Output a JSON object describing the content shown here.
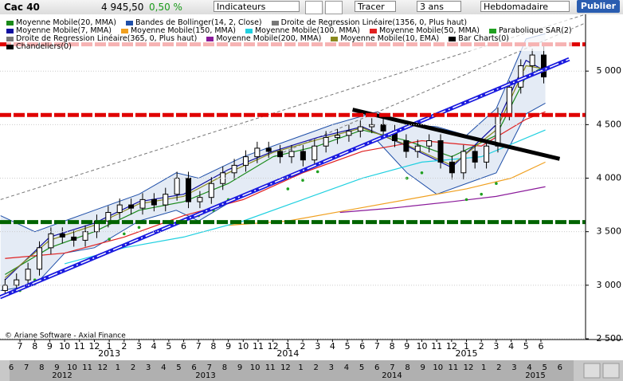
{
  "toolbar": {
    "symbol": "Cac 40",
    "price": "4 945,50",
    "change": "0,50 %",
    "indicators": "Indicateurs",
    "draw": "Tracer",
    "period": "3 ans",
    "interval": "Hebdomadaire",
    "publish": "Publier"
  },
  "copyright": "© Ariane Software - Axial Finance",
  "navigator": {
    "months": [
      "6",
      "7",
      "8",
      "9",
      "10",
      "11",
      "12",
      "1",
      "2",
      "3",
      "4",
      "5",
      "6",
      "7",
      "8",
      "9",
      "10",
      "11",
      "12",
      "1",
      "2",
      "3",
      "4",
      "5",
      "6",
      "7",
      "8",
      "9",
      "10",
      "11",
      "12",
      "1",
      "2",
      "3",
      "4",
      "5",
      "6"
    ],
    "years": [
      "2012",
      "2013",
      "2014",
      "2015"
    ]
  },
  "chart_data": {
    "type": "candlestick",
    "xlim": [
      -1.34,
      38
    ],
    "ylim": [
      2500,
      5530
    ],
    "yticks": [
      {
        "value": 2500,
        "label": "2 500"
      },
      {
        "value": 3000,
        "label": "3 000"
      },
      {
        "value": 3500,
        "label": "3 500"
      },
      {
        "value": 4000,
        "label": "4 000"
      },
      {
        "value": 4500,
        "label": "4 500"
      },
      {
        "value": 5000,
        "label": "5 000"
      }
    ],
    "grid": true,
    "xticks": [
      {
        "value": 0,
        "label": "7"
      },
      {
        "value": 1,
        "label": "8"
      },
      {
        "value": 2,
        "label": "9"
      },
      {
        "value": 3,
        "label": "10"
      },
      {
        "value": 4,
        "label": "11"
      },
      {
        "value": 5,
        "label": "12"
      },
      {
        "value": 6,
        "label": "1"
      },
      {
        "value": 7,
        "label": "2"
      },
      {
        "value": 8,
        "label": "3"
      },
      {
        "value": 9,
        "label": "4"
      },
      {
        "value": 10,
        "label": "5"
      },
      {
        "value": 11,
        "label": "6"
      },
      {
        "value": 12,
        "label": "7"
      },
      {
        "value": 13,
        "label": "8"
      },
      {
        "value": 14,
        "label": "9"
      },
      {
        "value": 15,
        "label": "10"
      },
      {
        "value": 16,
        "label": "11"
      },
      {
        "value": 17,
        "label": "12"
      },
      {
        "value": 18,
        "label": "1"
      },
      {
        "value": 19,
        "label": "2"
      },
      {
        "value": 20,
        "label": "3"
      },
      {
        "value": 21,
        "label": "4"
      },
      {
        "value": 22,
        "label": "5"
      },
      {
        "value": 23,
        "label": "6"
      },
      {
        "value": 24,
        "label": "7"
      },
      {
        "value": 25,
        "label": "8"
      },
      {
        "value": 26,
        "label": "9"
      },
      {
        "value": 27,
        "label": "10"
      },
      {
        "value": 28,
        "label": "11"
      },
      {
        "value": 29,
        "label": "12"
      },
      {
        "value": 30,
        "label": "1"
      },
      {
        "value": 31,
        "label": "2"
      },
      {
        "value": 32,
        "label": "3"
      },
      {
        "value": 33,
        "label": "4"
      },
      {
        "value": 34,
        "label": "5"
      },
      {
        "value": 35,
        "label": "6"
      }
    ],
    "xyears": [
      {
        "value": 6,
        "label": "2013"
      },
      {
        "value": 18,
        "label": "2014"
      },
      {
        "value": 30,
        "label": "2015"
      }
    ],
    "series": [
      {
        "name": "Moyenne Mobile(20, MMA)",
        "color": "#1a8a1a",
        "style": "line",
        "x": [
          -1,
          2,
          5,
          8,
          11,
          14,
          17,
          20,
          23,
          26,
          29,
          32,
          34,
          35.3
        ],
        "values": [
          3100,
          3350,
          3500,
          3700,
          3780,
          3950,
          4200,
          4300,
          4450,
          4350,
          4200,
          4400,
          4950,
          5050
        ]
      },
      {
        "name": "Bandes de Bollinger(14, 2, Close)",
        "color": "#1f4fa8",
        "style": "band",
        "x": [
          -1.3,
          1,
          3,
          5,
          8,
          10.5,
          12,
          15,
          18,
          21,
          24,
          26,
          28,
          30,
          32,
          34,
          35.3
        ],
        "upper": [
          3650,
          3500,
          3600,
          3700,
          3850,
          4050,
          4000,
          4200,
          4350,
          4500,
          4620,
          4500,
          4480,
          4400,
          4650,
          5300,
          5350
        ],
        "lower": [
          2950,
          3000,
          3300,
          3350,
          3600,
          3700,
          3600,
          3850,
          4000,
          4200,
          4350,
          4050,
          3850,
          3950,
          4050,
          4600,
          4700
        ]
      },
      {
        "name": "Droite de Regression Linéaire(1356, 0, Plus haut)",
        "color": "#777777",
        "style": "dashed",
        "x": [
          -1.3,
          38
        ],
        "values": [
          3800,
          5530
        ]
      },
      {
        "name": "Moyenne Mobile(7, MMA)",
        "color": "#1010a0",
        "style": "line",
        "x": [
          -1,
          2,
          5,
          8,
          11,
          14,
          17,
          20,
          23,
          26,
          29,
          32,
          34,
          35.3
        ],
        "values": [
          3050,
          3450,
          3580,
          3780,
          3850,
          4080,
          4250,
          4380,
          4480,
          4300,
          4100,
          4500,
          5100,
          5000
        ]
      },
      {
        "name": "Moyenne Mobile(150, MMA)",
        "color": "#f0a020",
        "style": "line",
        "x": [
          14,
          18,
          22,
          26,
          30,
          33,
          35.3
        ],
        "values": [
          3560,
          3600,
          3700,
          3800,
          3900,
          4000,
          4150
        ]
      },
      {
        "name": "Moyenne Mobile(100, MMA)",
        "color": "#20d0e0",
        "style": "line",
        "x": [
          3,
          7,
          11,
          15,
          19,
          23,
          27,
          31,
          35.3
        ],
        "values": [
          3200,
          3350,
          3450,
          3600,
          3800,
          4000,
          4150,
          4200,
          4450
        ]
      },
      {
        "name": "Moyenne Mobile(50, MMA)",
        "color": "#e02020",
        "style": "line",
        "x": [
          -1,
          3,
          7,
          11,
          15,
          19,
          23,
          27,
          31,
          34,
          35.3
        ],
        "values": [
          3250,
          3300,
          3450,
          3650,
          3800,
          4050,
          4250,
          4350,
          4300,
          4550,
          4620
        ]
      },
      {
        "name": "Parabolique SAR(2)",
        "color": "#20a020",
        "style": "dots",
        "x": [
          0,
          0.5,
          1,
          6,
          7,
          8,
          12,
          13,
          14,
          18,
          19,
          20,
          26,
          27,
          30,
          31,
          32
        ],
        "values": [
          2950,
          2990,
          3050,
          3430,
          3480,
          3540,
          3650,
          3700,
          3800,
          3900,
          3980,
          4060,
          4000,
          4050,
          3800,
          3850,
          3950
        ]
      },
      {
        "name": "Droite de Regression Linéaire(365, 0, Plus haut)",
        "color": "#777777",
        "style": "dashed",
        "x": [
          17,
          38
        ],
        "values": [
          4200,
          5450
        ]
      },
      {
        "name": "Moyenne Mobile(200, MMA)",
        "color": "#8a1a9a",
        "style": "line",
        "x": [
          21.5,
          25,
          29,
          32,
          35.3
        ],
        "values": [
          3680,
          3720,
          3780,
          3830,
          3920
        ]
      },
      {
        "name": "Moyenne Mobile(10, EMA)",
        "color": "#8a8a20",
        "style": "line",
        "x": [
          -1,
          2,
          5,
          8,
          11,
          14,
          17,
          20,
          23,
          26,
          29,
          32,
          34,
          35.3
        ],
        "values": [
          3070,
          3420,
          3560,
          3760,
          3830,
          4050,
          4240,
          4360,
          4470,
          4310,
          4120,
          4450,
          5050,
          5020
        ]
      },
      {
        "name": "Bar Charts(0)",
        "color": "#000000",
        "style": "bar"
      },
      {
        "name": "Chandeliers(0)",
        "color": "#000000",
        "style": "candlestick",
        "x": [
          -1,
          -0.23,
          0.54,
          1.31,
          2.08,
          2.85,
          3.62,
          4.39,
          5.16,
          5.93,
          6.7,
          7.47,
          8.24,
          9.01,
          9.78,
          10.55,
          11.32,
          12.09,
          12.86,
          13.63,
          14.4,
          15.17,
          15.94,
          16.71,
          17.48,
          18.25,
          19.02,
          19.79,
          20.56,
          21.33,
          22.1,
          22.87,
          23.64,
          24.41,
          25.18,
          25.95,
          26.72,
          27.49,
          28.26,
          29.03,
          29.8,
          30.57,
          31.34,
          32.11,
          32.88,
          33.65,
          34.42,
          35.19
        ],
        "open": [
          2950,
          3000,
          3050,
          3150,
          3350,
          3480,
          3450,
          3420,
          3500,
          3600,
          3680,
          3750,
          3720,
          3800,
          3750,
          3850,
          4000,
          3780,
          3820,
          3950,
          4050,
          4120,
          4200,
          4280,
          4250,
          4200,
          4250,
          4170,
          4300,
          4380,
          4400,
          4440,
          4480,
          4500,
          4440,
          4350,
          4250,
          4300,
          4350,
          4150,
          4050,
          4250,
          4150,
          4300,
          4600,
          4850,
          5050,
          5150
        ],
        "high": [
          3060,
          3110,
          3210,
          3410,
          3540,
          3540,
          3510,
          3560,
          3660,
          3740,
          3810,
          3810,
          3860,
          3860,
          3910,
          4060,
          4060,
          3880,
          4010,
          4110,
          4180,
          4260,
          4340,
          4340,
          4310,
          4310,
          4310,
          4360,
          4440,
          4460,
          4500,
          4540,
          4560,
          4560,
          4500,
          4410,
          4360,
          4410,
          4410,
          4210,
          4310,
          4310,
          4360,
          4660,
          4910,
          5110,
          5210,
          5260
        ],
        "low": [
          2890,
          2940,
          2990,
          3090,
          3290,
          3390,
          3360,
          3360,
          3440,
          3540,
          3620,
          3660,
          3660,
          3690,
          3690,
          3790,
          3720,
          3720,
          3760,
          3890,
          3990,
          4060,
          4140,
          4190,
          4140,
          4140,
          4110,
          4110,
          4240,
          4320,
          4340,
          4380,
          4420,
          4380,
          4290,
          4190,
          4190,
          4240,
          4090,
          3990,
          3990,
          4090,
          4090,
          4240,
          4540,
          4790,
          4990,
          4885
        ],
        "close": [
          3000,
          3050,
          3150,
          3350,
          3480,
          3450,
          3420,
          3500,
          3600,
          3680,
          3750,
          3720,
          3800,
          3750,
          3850,
          4000,
          3780,
          3820,
          3950,
          4050,
          4120,
          4200,
          4280,
          4250,
          4200,
          4250,
          4170,
          4300,
          4380,
          4400,
          4440,
          4480,
          4500,
          4440,
          4350,
          4250,
          4300,
          4350,
          4150,
          4050,
          4250,
          4150,
          4300,
          4600,
          4850,
          5050,
          5150,
          4945.5
        ]
      }
    ],
    "drawings": [
      {
        "color": "#1a1adf",
        "style": "trend",
        "x": [
          -1.34,
          36.9
        ],
        "values": [
          2888,
          5112
        ]
      },
      {
        "color": "#000000",
        "style": "trend",
        "x": [
          22.35,
          36.26
        ],
        "values": [
          4640,
          4180
        ]
      },
      {
        "color": "#e00000",
        "style": "level",
        "x": [
          -1.34,
          38
        ],
        "values": [
          5250,
          5250
        ]
      },
      {
        "color": "#e00000",
        "style": "level",
        "x": [
          -1.34,
          38
        ],
        "values": [
          4590,
          4590
        ]
      },
      {
        "color": "#006400",
        "style": "level",
        "x": [
          -1.34,
          38
        ],
        "values": [
          3590,
          3590
        ]
      }
    ]
  }
}
